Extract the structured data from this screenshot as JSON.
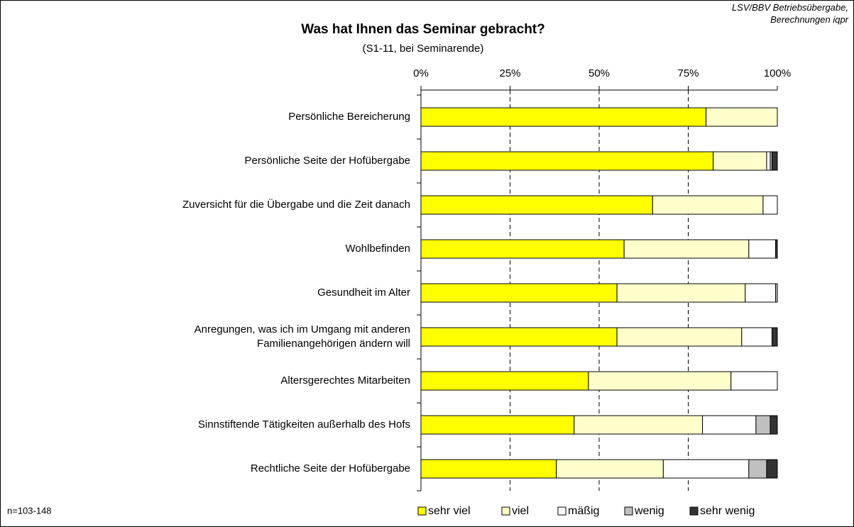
{
  "chart_data": {
    "type": "stacked_bar_horizontal",
    "title": "Was hat Ihnen das Seminar gebracht?",
    "subtitle": "(S1-11, bei Seminarende)",
    "source": "LSV/BBV Betriebsübergabe,\nBerechnungen iqpr",
    "note": "n=103-148",
    "categories": [
      "Persönliche Bereicherung",
      "Persönliche Seite der Hofübergabe",
      "Zuversicht für die Übergabe und die Zeit danach",
      "Wohlbefinden",
      "Gesundheit im Alter",
      "Anregungen, was ich im Umgang mit anderen\nFamilienangehörigen ändern will",
      "Altersgerechtes Mitarbeiten",
      "Sinnstiftende Tätigkeiten außerhalb des Hofs",
      "Rechtliche Seite der Hofübergabe"
    ],
    "series": [
      {
        "name": "sehr viel",
        "color": "#ffff00",
        "values": [
          80,
          82,
          65,
          57,
          55,
          55,
          47,
          43,
          38
        ]
      },
      {
        "name": "viel",
        "color": "#ffffcc",
        "values": [
          20,
          15,
          31,
          35,
          36,
          35,
          40,
          36,
          30
        ]
      },
      {
        "name": "mäßig",
        "color": "#ffffff",
        "values": [
          0,
          1,
          4,
          7.5,
          8.5,
          8.5,
          13,
          15,
          24
        ]
      },
      {
        "name": "wenig",
        "color": "#c0c0c0",
        "values": [
          0,
          0.5,
          0,
          0,
          0.5,
          0,
          0,
          4,
          5
        ]
      },
      {
        "name": "sehr wenig",
        "color": "#333333",
        "values": [
          0,
          1.5,
          0,
          0.5,
          0,
          1.5,
          0,
          2,
          3
        ]
      }
    ],
    "xlim": [
      0,
      100
    ],
    "xticks": [
      {
        "value": 0,
        "label": "0%"
      },
      {
        "value": 25,
        "label": "25%"
      },
      {
        "value": 50,
        "label": "50%"
      },
      {
        "value": 75,
        "label": "75%"
      },
      {
        "value": 100,
        "label": "100%"
      }
    ],
    "grid": true,
    "legend": "bottom"
  }
}
